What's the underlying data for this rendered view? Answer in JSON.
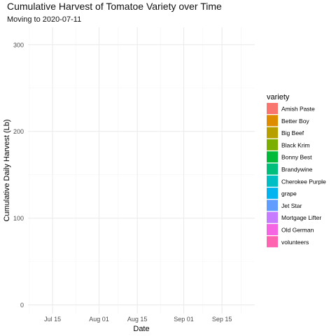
{
  "chart_data": {
    "type": "area",
    "title": "Cumulative Harvest of Tomatoe Variety over Time",
    "subtitle": "Moving to 2020-07-11",
    "xlabel": "Date",
    "ylabel": "Cumulative Daily Harvest (Lb)",
    "x_ticks": [
      "Jul 15",
      "Aug 01",
      "Aug 15",
      "Sep 01",
      "Sep 15"
    ],
    "y_ticks": [
      0,
      100,
      200,
      300
    ],
    "ylim": [
      -10,
      320
    ],
    "xlim": [
      "2020-07-06",
      "2020-09-27"
    ],
    "grid": true,
    "legend": {
      "title": "variety",
      "position": "right",
      "entries": [
        {
          "name": "Amish Paste",
          "color": "#F8766D"
        },
        {
          "name": "Better Boy",
          "color": "#DE8C00"
        },
        {
          "name": "Big Beef",
          "color": "#B79F00"
        },
        {
          "name": "Black Krim",
          "color": "#7CAE00"
        },
        {
          "name": "Bonny Best",
          "color": "#00BA38"
        },
        {
          "name": "Brandywine",
          "color": "#00BF7D"
        },
        {
          "name": "Cherokee Purple",
          "color": "#00BFC4"
        },
        {
          "name": "grape",
          "color": "#00B4F0"
        },
        {
          "name": "Jet Star",
          "color": "#619CFF"
        },
        {
          "name": "Mortgage Lifter",
          "color": "#C77CFF"
        },
        {
          "name": "Old German",
          "color": "#F564E3"
        },
        {
          "name": "volunteers",
          "color": "#FF64B0"
        }
      ]
    },
    "series": []
  }
}
